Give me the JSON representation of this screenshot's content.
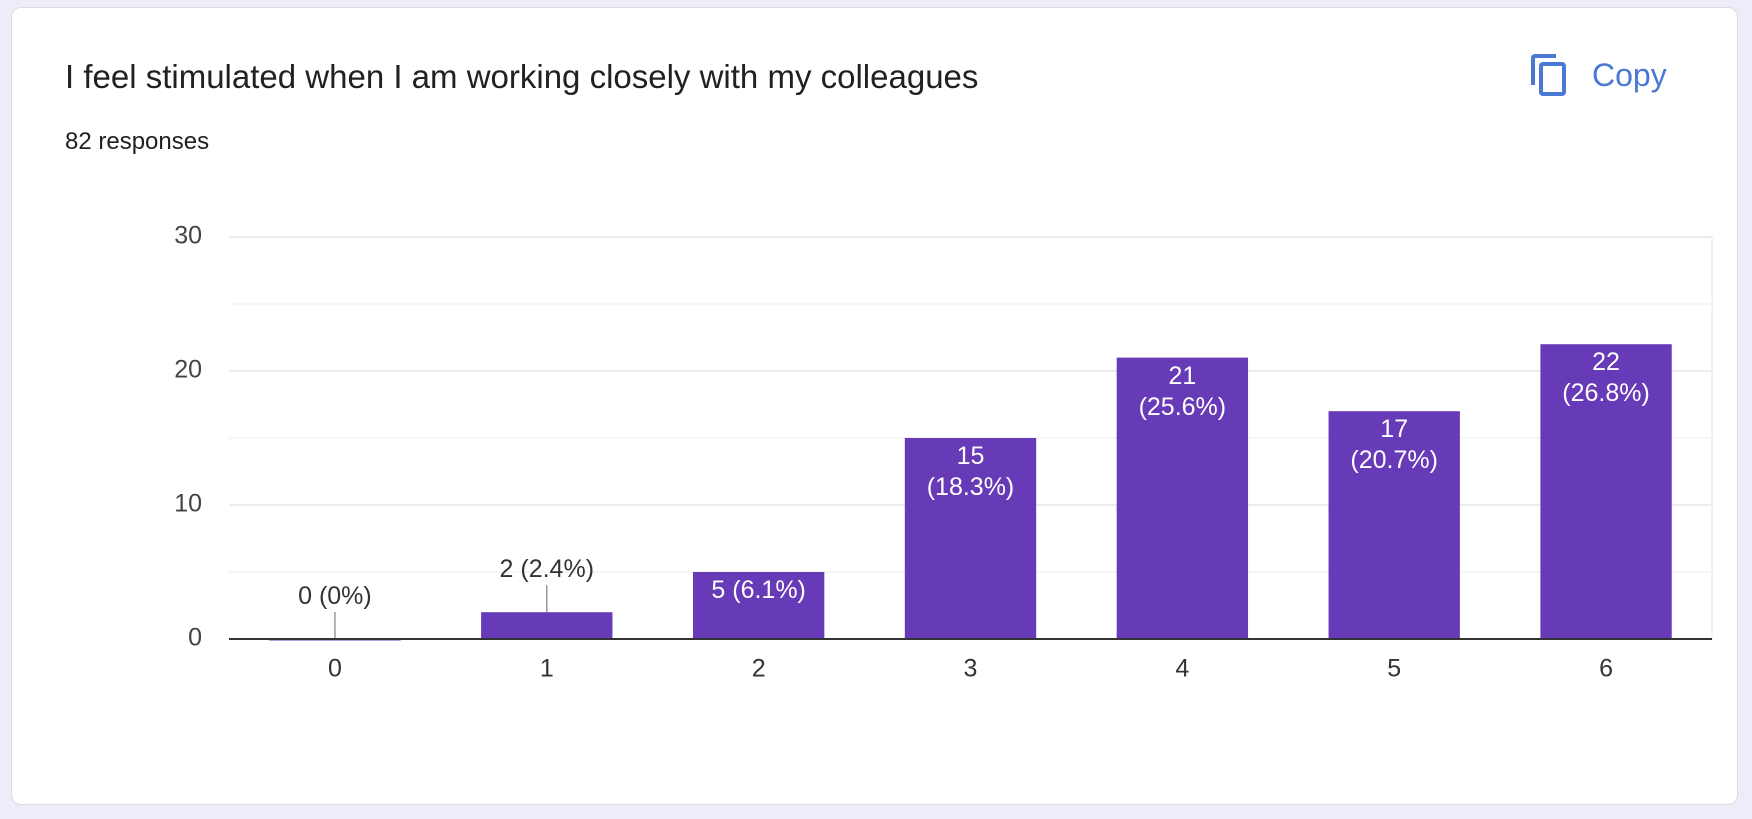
{
  "copy_label": "Copy",
  "chart_data": {
    "type": "bar",
    "title": "I feel stimulated when I am working closely with my colleagues",
    "subtitle": "82 responses",
    "categories": [
      "0",
      "1",
      "2",
      "3",
      "4",
      "5",
      "6"
    ],
    "values": [
      0,
      2,
      5,
      15,
      21,
      17,
      22
    ],
    "value_labels": [
      "0 (0%)",
      "2 (2.4%)",
      "5 (6.1%)",
      "15\n(18.3%)",
      "21\n(25.6%)",
      "17\n(20.7%)",
      "22\n(26.8%)"
    ],
    "color": "#673ab7",
    "ylim": [
      0,
      30
    ],
    "yticks": [
      0,
      10,
      20,
      30
    ],
    "minor_yticks": [
      5,
      15,
      25
    ],
    "grid": true
  }
}
